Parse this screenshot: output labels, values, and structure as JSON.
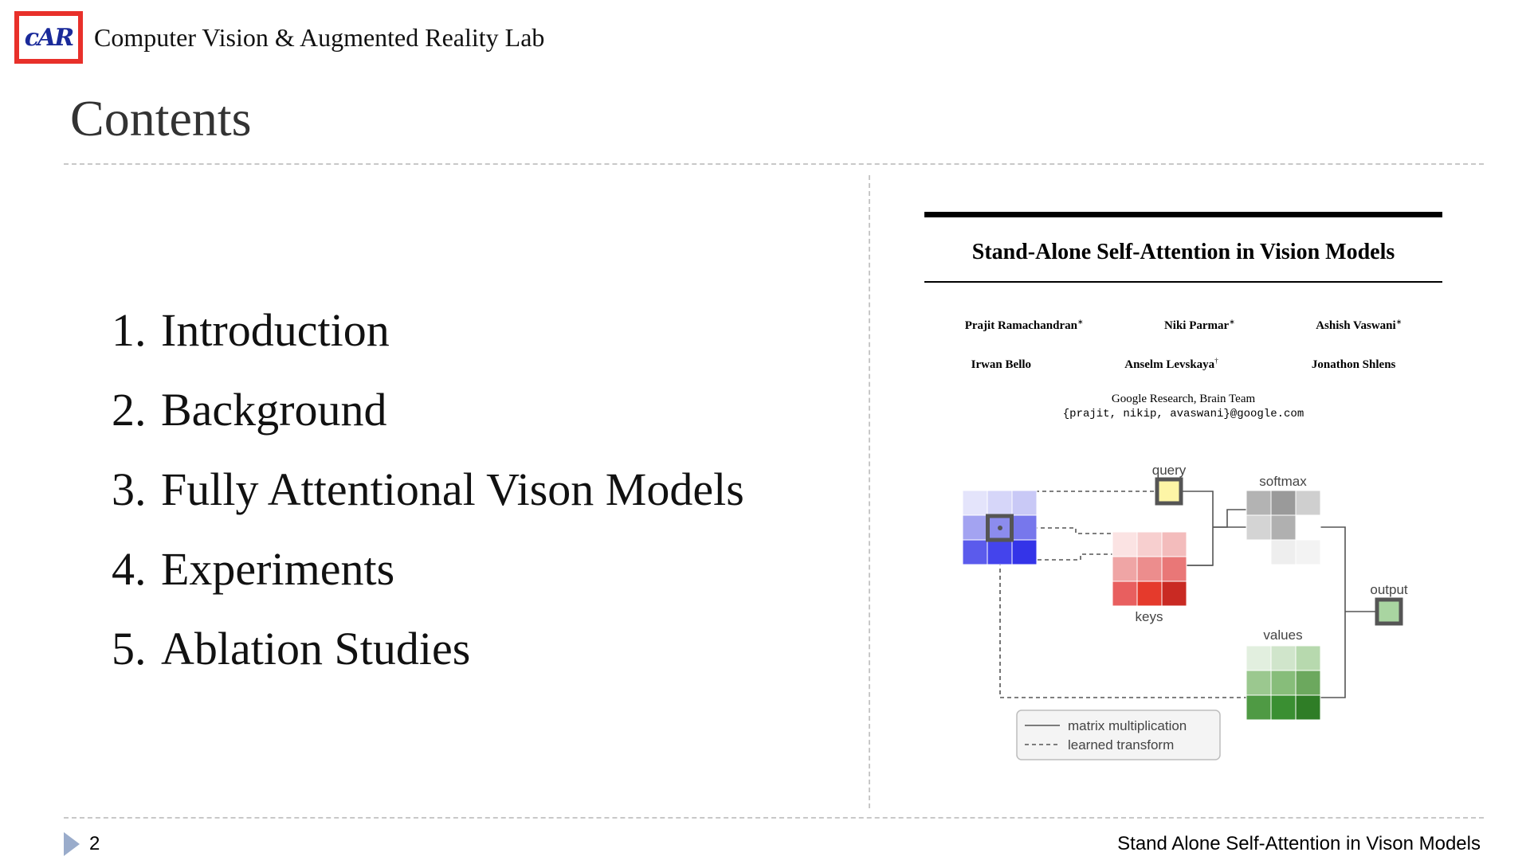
{
  "header": {
    "logo_text": "cAR",
    "lab_name": "Computer Vision & Augmented Reality Lab"
  },
  "slide": {
    "title": "Contents",
    "items": [
      {
        "num": "1.",
        "label": "Introduction"
      },
      {
        "num": "2.",
        "label": "Background"
      },
      {
        "num": "3.",
        "label": "Fully Attentional Vison Models"
      },
      {
        "num": "4.",
        "label": "Experiments"
      },
      {
        "num": "5.",
        "label": "Ablation Studies"
      }
    ]
  },
  "paper": {
    "title": "Stand-Alone Self-Attention in Vision Models",
    "authors_row1": [
      {
        "name": "Prajit Ramachandran",
        "mark": "∗"
      },
      {
        "name": "Niki Parmar",
        "mark": "∗"
      },
      {
        "name": "Ashish Vaswani",
        "mark": "∗"
      }
    ],
    "authors_row2": [
      {
        "name": "Irwan Bello",
        "mark": ""
      },
      {
        "name": "Anselm Levskaya",
        "mark": "†"
      },
      {
        "name": "Jonathon Shlens",
        "mark": ""
      }
    ],
    "affiliation": "Google Research, Brain Team",
    "emails": "{prajit, nikip, avaswani}@google.com"
  },
  "diagram": {
    "labels": {
      "query": "query",
      "softmax": "softmax",
      "keys": "keys",
      "values": "values",
      "output": "output"
    },
    "legend": {
      "solid": "matrix multiplication",
      "dashed": "learned transform"
    },
    "colors": {
      "input_grid": [
        "#e4e4fb",
        "#d6d6f9",
        "#c9c9f6",
        "#a3a3f1",
        "#8c8cee",
        "#7777ec",
        "#5b5bec",
        "#4444ec",
        "#3434e8"
      ],
      "keys_grid": [
        "#fbe3e3",
        "#f7cfcf",
        "#f3bcbc",
        "#efa5a5",
        "#ec8d8d",
        "#e97777",
        "#e85f5f",
        "#e53a2c",
        "#c92a23"
      ],
      "softmax_grid": [
        "#b3b3b3",
        "#9a9a9a",
        "#cfcfcf",
        "#d4d4d4",
        "#b0b0b0",
        "#ffffff",
        "#ffffff",
        "#eeeeee",
        "#f3f3f3"
      ],
      "values_grid": [
        "#e2efdf",
        "#d0e5cb",
        "#b7d9ae",
        "#9bc88f",
        "#87bd7a",
        "#6ca85e",
        "#4f9a44",
        "#3a8f32",
        "#2f7d26"
      ],
      "query_fill": "#fdf5a6",
      "output_fill": "#a9d5a1"
    }
  },
  "footer": {
    "page_number": "2",
    "title": "Stand Alone Self-Attention  in Vison Models"
  }
}
